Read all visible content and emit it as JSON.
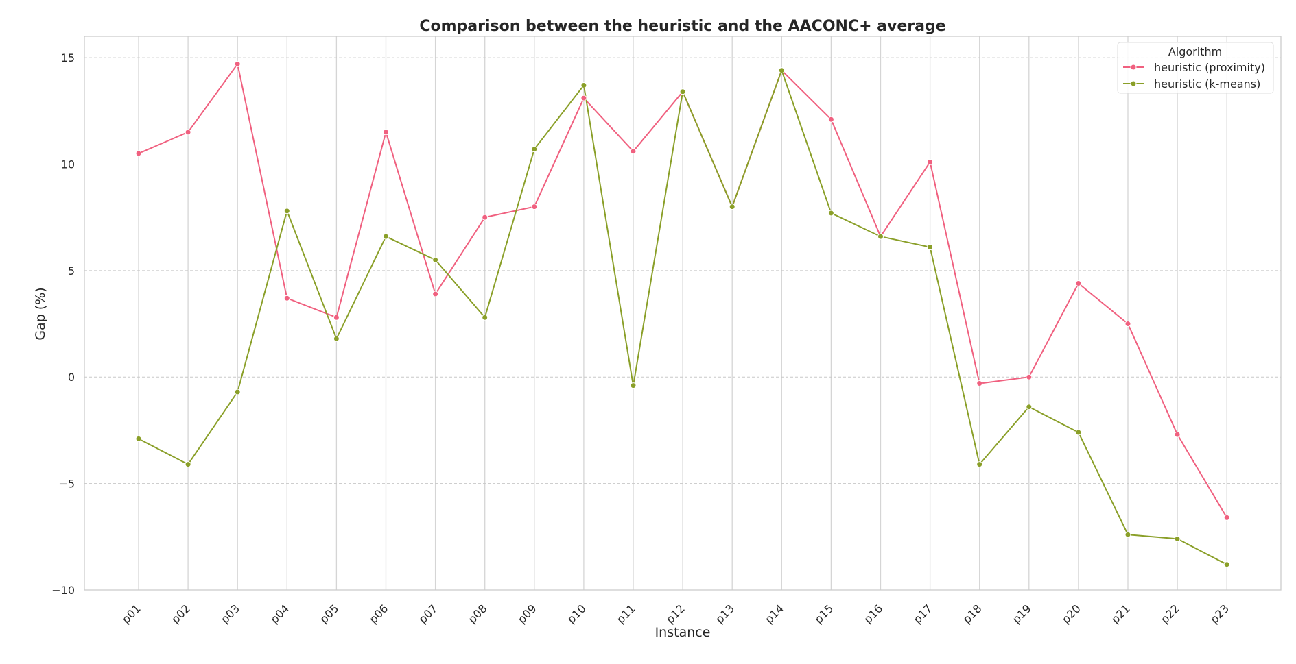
{
  "chart_data": {
    "type": "line",
    "title": "Comparison between the heuristic and the AACONC+ average",
    "xlabel": "Instance",
    "ylabel": "Gap (%)",
    "ylim": [
      -10,
      16
    ],
    "yticks": [
      -10,
      -5,
      0,
      5,
      10,
      15
    ],
    "ytick_labels": [
      "−10",
      "−5",
      "0",
      "5",
      "10",
      "15"
    ],
    "grid": true,
    "legend_title": "Algorithm",
    "legend_position": "top-right",
    "categories": [
      "p01",
      "p02",
      "p03",
      "p04",
      "p05",
      "p06",
      "p07",
      "p08",
      "p09",
      "p10",
      "p11",
      "p12",
      "p13",
      "p14",
      "p15",
      "p16",
      "p17",
      "p18",
      "p19",
      "p20",
      "p21",
      "p22",
      "p23"
    ],
    "series": [
      {
        "name": "heuristic (proximity)",
        "color": "#f0607f",
        "values": [
          10.5,
          11.5,
          14.7,
          3.7,
          2.8,
          11.5,
          3.9,
          7.5,
          8.0,
          13.1,
          10.6,
          13.4,
          8.0,
          14.4,
          12.1,
          6.6,
          10.1,
          -0.3,
          0.0,
          4.4,
          2.5,
          -2.7,
          -6.6
        ]
      },
      {
        "name": "heuristic (k-means)",
        "color": "#8a9f28",
        "values": [
          -2.9,
          -4.1,
          -0.7,
          7.8,
          1.8,
          6.6,
          5.5,
          2.8,
          10.7,
          13.7,
          -0.4,
          13.4,
          8.0,
          14.4,
          7.7,
          6.6,
          6.1,
          -4.1,
          -1.4,
          -2.6,
          -7.4,
          -7.6,
          -8.8
        ]
      }
    ]
  }
}
